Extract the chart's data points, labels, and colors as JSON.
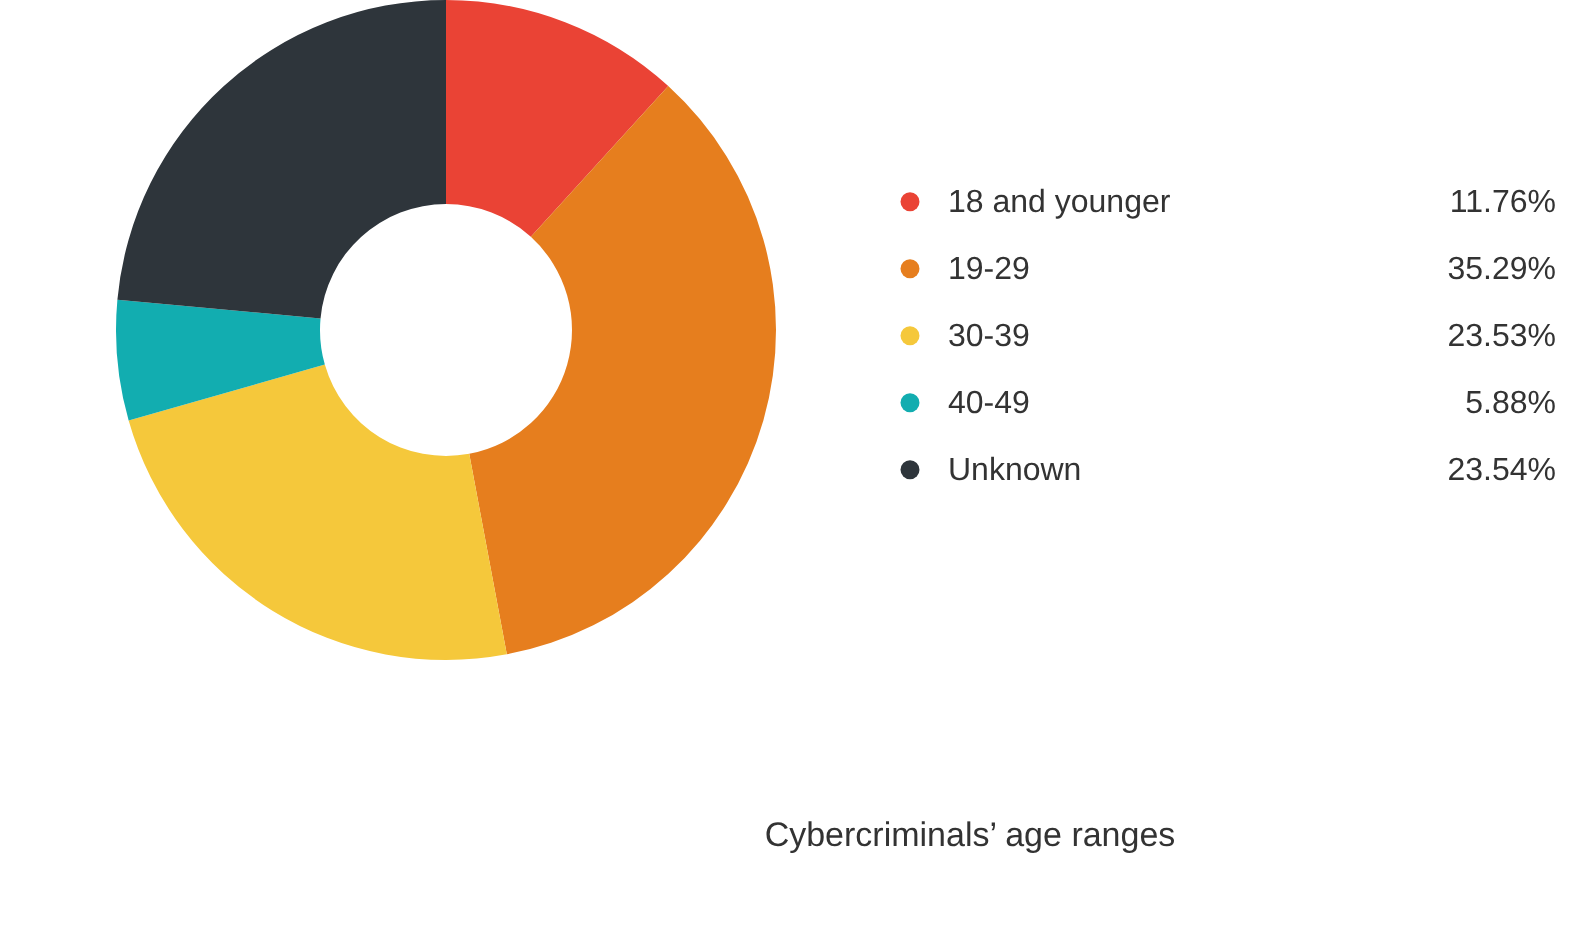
{
  "chart_data": {
    "type": "donut",
    "title": "Cybercriminals’ age ranges",
    "categories": [
      "18 and younger",
      "19-29",
      "30-39",
      "40-49",
      "Unknown"
    ],
    "values": [
      11.76,
      35.29,
      23.53,
      5.88,
      23.54
    ],
    "value_labels": [
      "11.76%",
      "35.29%",
      "23.53%",
      "5.88%",
      "23.54%"
    ],
    "colors": [
      "#ea4335",
      "#e67e1e",
      "#f5c83b",
      "#12adb0",
      "#2e353b"
    ],
    "legend": "right"
  }
}
